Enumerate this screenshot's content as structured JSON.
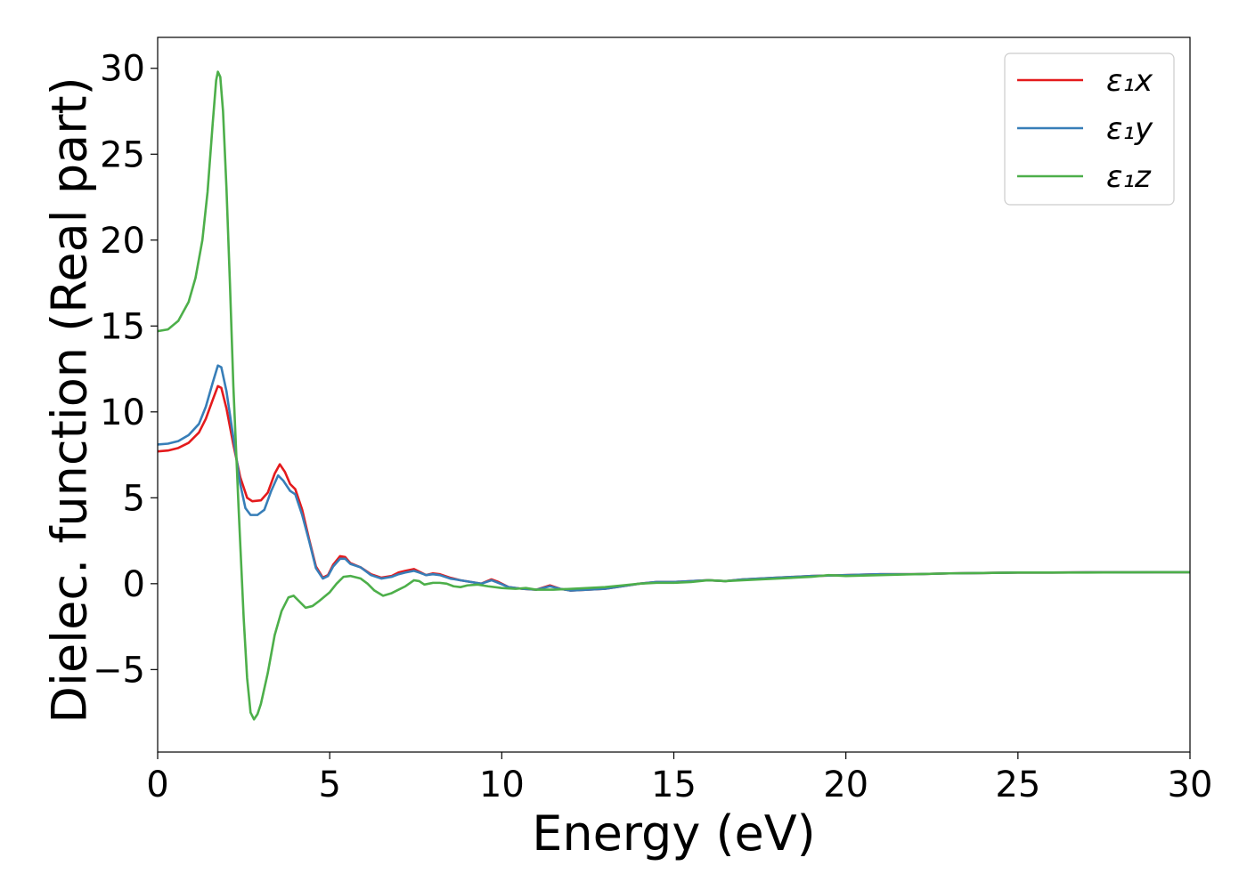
{
  "chart_data": {
    "type": "line",
    "title": "",
    "xlabel": "Energy (eV)",
    "ylabel": "Dielec. function (Real part)",
    "xlim": [
      0,
      30
    ],
    "ylim": [
      -9.8,
      31.8
    ],
    "xticks": [
      0,
      5,
      10,
      15,
      20,
      25,
      30
    ],
    "yticks": [
      -5,
      0,
      5,
      10,
      15,
      20,
      25,
      30
    ],
    "xtick_labels": [
      "0",
      "5",
      "10",
      "15",
      "20",
      "25",
      "30"
    ],
    "ytick_labels": [
      "−5",
      "0",
      "5",
      "10",
      "15",
      "20",
      "25",
      "30"
    ],
    "grid": false,
    "legend_position": "top-right",
    "series": [
      {
        "name": "ε₁x",
        "color": "#e41a1c",
        "points": [
          [
            0,
            7.7
          ],
          [
            0.3,
            7.75
          ],
          [
            0.6,
            7.9
          ],
          [
            0.9,
            8.2
          ],
          [
            1.2,
            8.8
          ],
          [
            1.4,
            9.6
          ],
          [
            1.6,
            10.7
          ],
          [
            1.75,
            11.5
          ],
          [
            1.85,
            11.4
          ],
          [
            2.0,
            10.2
          ],
          [
            2.2,
            8.1
          ],
          [
            2.4,
            6.2
          ],
          [
            2.6,
            5.0
          ],
          [
            2.75,
            4.8
          ],
          [
            3.0,
            4.85
          ],
          [
            3.2,
            5.3
          ],
          [
            3.4,
            6.4
          ],
          [
            3.55,
            6.95
          ],
          [
            3.7,
            6.5
          ],
          [
            3.85,
            5.8
          ],
          [
            4.0,
            5.5
          ],
          [
            4.2,
            4.3
          ],
          [
            4.4,
            2.6
          ],
          [
            4.6,
            1.0
          ],
          [
            4.8,
            0.35
          ],
          [
            4.95,
            0.5
          ],
          [
            5.1,
            1.1
          ],
          [
            5.3,
            1.6
          ],
          [
            5.45,
            1.55
          ],
          [
            5.6,
            1.2
          ],
          [
            5.9,
            0.95
          ],
          [
            6.2,
            0.55
          ],
          [
            6.5,
            0.35
          ],
          [
            6.8,
            0.45
          ],
          [
            7.0,
            0.65
          ],
          [
            7.2,
            0.75
          ],
          [
            7.45,
            0.85
          ],
          [
            7.6,
            0.7
          ],
          [
            7.8,
            0.5
          ],
          [
            8.0,
            0.6
          ],
          [
            8.2,
            0.55
          ],
          [
            8.5,
            0.35
          ],
          [
            8.8,
            0.2
          ],
          [
            9.1,
            0.1
          ],
          [
            9.4,
            0.0
          ],
          [
            9.7,
            0.25
          ],
          [
            9.9,
            0.1
          ],
          [
            10.2,
            -0.2
          ],
          [
            10.6,
            -0.3
          ],
          [
            11.0,
            -0.35
          ],
          [
            11.4,
            -0.1
          ],
          [
            11.7,
            -0.3
          ],
          [
            12.0,
            -0.4
          ],
          [
            12.5,
            -0.35
          ],
          [
            13.0,
            -0.3
          ],
          [
            13.5,
            -0.15
          ],
          [
            14.0,
            0.0
          ],
          [
            14.5,
            0.1
          ],
          [
            15.0,
            0.1
          ],
          [
            15.5,
            0.15
          ],
          [
            16.0,
            0.2
          ],
          [
            16.5,
            0.15
          ],
          [
            17.0,
            0.25
          ],
          [
            18.0,
            0.35
          ],
          [
            19.0,
            0.45
          ],
          [
            20.0,
            0.5
          ],
          [
            21.0,
            0.55
          ],
          [
            22.0,
            0.55
          ],
          [
            23.0,
            0.6
          ],
          [
            24.0,
            0.62
          ],
          [
            25.0,
            0.65
          ],
          [
            26.0,
            0.65
          ],
          [
            27.0,
            0.66
          ],
          [
            28.0,
            0.66
          ],
          [
            29.0,
            0.67
          ],
          [
            30.0,
            0.67
          ]
        ]
      },
      {
        "name": "ε₁y",
        "color": "#377eb8",
        "points": [
          [
            0,
            8.1
          ],
          [
            0.3,
            8.15
          ],
          [
            0.6,
            8.3
          ],
          [
            0.9,
            8.65
          ],
          [
            1.2,
            9.3
          ],
          [
            1.4,
            10.3
          ],
          [
            1.6,
            11.7
          ],
          [
            1.75,
            12.7
          ],
          [
            1.85,
            12.6
          ],
          [
            2.0,
            11.2
          ],
          [
            2.2,
            8.5
          ],
          [
            2.4,
            5.8
          ],
          [
            2.55,
            4.4
          ],
          [
            2.7,
            4.0
          ],
          [
            2.9,
            4.0
          ],
          [
            3.1,
            4.3
          ],
          [
            3.3,
            5.4
          ],
          [
            3.5,
            6.3
          ],
          [
            3.65,
            6.0
          ],
          [
            3.85,
            5.4
          ],
          [
            4.0,
            5.2
          ],
          [
            4.2,
            4.0
          ],
          [
            4.4,
            2.5
          ],
          [
            4.6,
            0.9
          ],
          [
            4.8,
            0.3
          ],
          [
            4.95,
            0.45
          ],
          [
            5.1,
            1.0
          ],
          [
            5.3,
            1.45
          ],
          [
            5.45,
            1.45
          ],
          [
            5.6,
            1.15
          ],
          [
            5.9,
            0.95
          ],
          [
            6.2,
            0.5
          ],
          [
            6.5,
            0.3
          ],
          [
            6.8,
            0.4
          ],
          [
            7.0,
            0.55
          ],
          [
            7.2,
            0.65
          ],
          [
            7.45,
            0.75
          ],
          [
            7.6,
            0.65
          ],
          [
            7.8,
            0.5
          ],
          [
            8.0,
            0.55
          ],
          [
            8.2,
            0.5
          ],
          [
            8.5,
            0.3
          ],
          [
            8.8,
            0.2
          ],
          [
            9.1,
            0.1
          ],
          [
            9.4,
            0.0
          ],
          [
            9.7,
            0.2
          ],
          [
            9.9,
            0.05
          ],
          [
            10.2,
            -0.2
          ],
          [
            10.6,
            -0.3
          ],
          [
            11.0,
            -0.35
          ],
          [
            11.4,
            -0.15
          ],
          [
            11.7,
            -0.3
          ],
          [
            12.0,
            -0.4
          ],
          [
            12.5,
            -0.35
          ],
          [
            13.0,
            -0.3
          ],
          [
            13.5,
            -0.15
          ],
          [
            14.0,
            0.0
          ],
          [
            14.5,
            0.1
          ],
          [
            15.0,
            0.1
          ],
          [
            15.5,
            0.15
          ],
          [
            16.0,
            0.2
          ],
          [
            16.5,
            0.15
          ],
          [
            17.0,
            0.25
          ],
          [
            18.0,
            0.35
          ],
          [
            19.0,
            0.45
          ],
          [
            20.0,
            0.5
          ],
          [
            21.0,
            0.55
          ],
          [
            22.0,
            0.55
          ],
          [
            23.0,
            0.6
          ],
          [
            24.0,
            0.62
          ],
          [
            25.0,
            0.65
          ],
          [
            26.0,
            0.65
          ],
          [
            27.0,
            0.66
          ],
          [
            28.0,
            0.66
          ],
          [
            29.0,
            0.67
          ],
          [
            30.0,
            0.67
          ]
        ]
      },
      {
        "name": "ε₁z",
        "color": "#4daf4a",
        "points": [
          [
            0,
            14.7
          ],
          [
            0.3,
            14.8
          ],
          [
            0.6,
            15.3
          ],
          [
            0.9,
            16.4
          ],
          [
            1.1,
            17.8
          ],
          [
            1.3,
            20.0
          ],
          [
            1.45,
            22.8
          ],
          [
            1.6,
            26.8
          ],
          [
            1.7,
            29.3
          ],
          [
            1.75,
            29.8
          ],
          [
            1.82,
            29.5
          ],
          [
            1.9,
            27.5
          ],
          [
            2.0,
            23.0
          ],
          [
            2.1,
            17.5
          ],
          [
            2.2,
            11.5
          ],
          [
            2.35,
            4.5
          ],
          [
            2.5,
            -2.0
          ],
          [
            2.6,
            -5.5
          ],
          [
            2.7,
            -7.5
          ],
          [
            2.8,
            -7.9
          ],
          [
            2.9,
            -7.6
          ],
          [
            3.0,
            -7.0
          ],
          [
            3.2,
            -5.2
          ],
          [
            3.4,
            -3.0
          ],
          [
            3.6,
            -1.6
          ],
          [
            3.8,
            -0.8
          ],
          [
            3.95,
            -0.7
          ],
          [
            4.1,
            -1.0
          ],
          [
            4.3,
            -1.4
          ],
          [
            4.5,
            -1.3
          ],
          [
            4.7,
            -1.0
          ],
          [
            5.0,
            -0.5
          ],
          [
            5.2,
            0.0
          ],
          [
            5.4,
            0.4
          ],
          [
            5.6,
            0.45
          ],
          [
            5.9,
            0.3
          ],
          [
            6.1,
            0.0
          ],
          [
            6.3,
            -0.4
          ],
          [
            6.55,
            -0.7
          ],
          [
            6.8,
            -0.55
          ],
          [
            7.0,
            -0.35
          ],
          [
            7.2,
            -0.15
          ],
          [
            7.45,
            0.2
          ],
          [
            7.6,
            0.15
          ],
          [
            7.75,
            -0.05
          ],
          [
            8.0,
            0.05
          ],
          [
            8.2,
            0.05
          ],
          [
            8.4,
            0.0
          ],
          [
            8.6,
            -0.15
          ],
          [
            8.8,
            -0.2
          ],
          [
            9.0,
            -0.1
          ],
          [
            9.3,
            -0.05
          ],
          [
            9.6,
            -0.15
          ],
          [
            10.0,
            -0.25
          ],
          [
            10.4,
            -0.3
          ],
          [
            10.7,
            -0.25
          ],
          [
            11.0,
            -0.35
          ],
          [
            11.5,
            -0.35
          ],
          [
            12.0,
            -0.3
          ],
          [
            12.5,
            -0.25
          ],
          [
            13.0,
            -0.2
          ],
          [
            13.5,
            -0.1
          ],
          [
            14.0,
            0.0
          ],
          [
            14.5,
            0.05
          ],
          [
            15.0,
            0.05
          ],
          [
            15.5,
            0.1
          ],
          [
            16.0,
            0.2
          ],
          [
            16.5,
            0.15
          ],
          [
            17.0,
            0.2
          ],
          [
            18.0,
            0.3
          ],
          [
            19.0,
            0.4
          ],
          [
            19.5,
            0.5
          ],
          [
            20.0,
            0.45
          ],
          [
            21.0,
            0.5
          ],
          [
            22.0,
            0.55
          ],
          [
            23.0,
            0.6
          ],
          [
            24.0,
            0.62
          ],
          [
            25.0,
            0.65
          ],
          [
            26.0,
            0.65
          ],
          [
            27.0,
            0.65
          ],
          [
            28.0,
            0.66
          ],
          [
            29.0,
            0.67
          ],
          [
            30.0,
            0.67
          ]
        ]
      }
    ]
  }
}
